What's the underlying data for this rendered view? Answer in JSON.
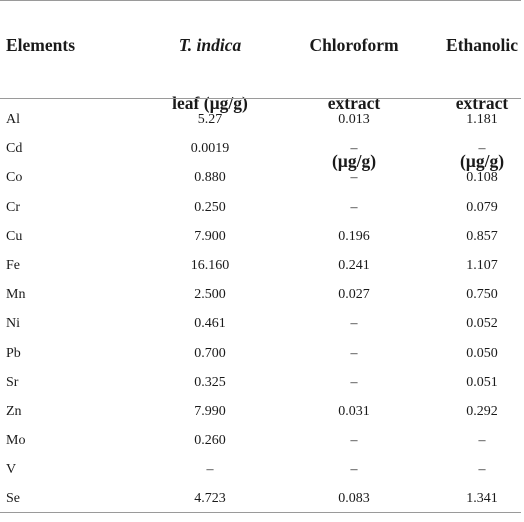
{
  "table": {
    "headers": {
      "elements": "Elements",
      "leaf_line1": "T. indica",
      "leaf_line2": "leaf (µg/g)",
      "chloroform_line1": "Chloroform",
      "chloroform_line2": "extract",
      "chloroform_line3": "(µg/g)",
      "ethanolic_line1": "Ethanolic",
      "ethanolic_line2": "extract",
      "ethanolic_line3": "(µg/g)"
    },
    "rows": [
      {
        "element": "Al",
        "leaf": "5.27",
        "chloroform": "0.013",
        "ethanolic": "1.181"
      },
      {
        "element": "Cd",
        "leaf": "0.0019",
        "chloroform": "–",
        "ethanolic": "–"
      },
      {
        "element": "Co",
        "leaf": "0.880",
        "chloroform": "–",
        "ethanolic": "0.108"
      },
      {
        "element": "Cr",
        "leaf": "0.250",
        "chloroform": "–",
        "ethanolic": "0.079"
      },
      {
        "element": "Cu",
        "leaf": "7.900",
        "chloroform": "0.196",
        "ethanolic": "0.857"
      },
      {
        "element": "Fe",
        "leaf": "16.160",
        "chloroform": "0.241",
        "ethanolic": "1.107"
      },
      {
        "element": "Mn",
        "leaf": "2.500",
        "chloroform": "0.027",
        "ethanolic": "0.750"
      },
      {
        "element": "Ni",
        "leaf": "0.461",
        "chloroform": "–",
        "ethanolic": "0.052"
      },
      {
        "element": "Pb",
        "leaf": "0.700",
        "chloroform": "–",
        "ethanolic": "0.050"
      },
      {
        "element": "Sr",
        "leaf": "0.325",
        "chloroform": "–",
        "ethanolic": "0.051"
      },
      {
        "element": "Zn",
        "leaf": "7.990",
        "chloroform": "0.031",
        "ethanolic": "0.292"
      },
      {
        "element": "Mo",
        "leaf": "0.260",
        "chloroform": "–",
        "ethanolic": "–"
      },
      {
        "element": "V",
        "leaf": "–",
        "chloroform": "–",
        "ethanolic": "–"
      },
      {
        "element": "Se",
        "leaf": "4.723",
        "chloroform": "0.083",
        "ethanolic": "1.341"
      }
    ]
  }
}
